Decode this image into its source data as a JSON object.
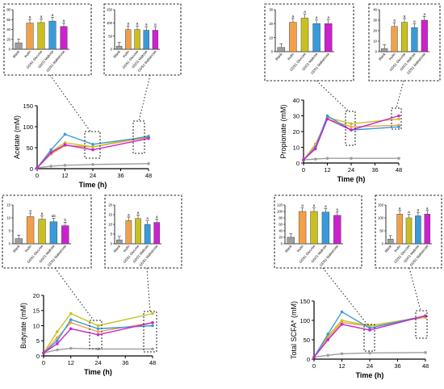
{
  "colors": {
    "Blank": "#9e9e9e",
    "Inulin": "#f0a04b",
    "GDS1 Glucose": "#c8c020",
    "GDS1 Maltose": "#3a9ad9",
    "GDS1 Maltotriose": "#cc22cc"
  },
  "chart_data": [
    {
      "type": "line",
      "ylabel": "Acetate (mM)",
      "xlabel": "Time (h)",
      "x": [
        0,
        6,
        12,
        24,
        48
      ],
      "xticks": [
        "0",
        "12",
        "24",
        "36",
        "48"
      ],
      "yticks": [
        "0",
        "50",
        "100",
        "150"
      ],
      "ylim": [
        0,
        150
      ],
      "series": [
        {
          "name": "Blank",
          "values": [
            2,
            6,
            8,
            10,
            12
          ]
        },
        {
          "name": "Inulin",
          "values": [
            2,
            35,
            55,
            52,
            75
          ]
        },
        {
          "name": "GDS1 Glucose",
          "values": [
            2,
            40,
            62,
            52,
            78
          ]
        },
        {
          "name": "GDS1 Maltose",
          "values": [
            2,
            45,
            82,
            58,
            76
          ]
        },
        {
          "name": "GDS1 Maltotriose",
          "values": [
            2,
            38,
            57,
            45,
            72
          ]
        }
      ],
      "insets": [
        {
          "categories": [
            "Blank",
            "Inulin",
            "GDS1 Glucose",
            "GDS1 Maltose",
            "GDS1 Maltotriose"
          ],
          "values": [
            13,
            53,
            54,
            57,
            46
          ],
          "yticks": [
            "0",
            "20",
            "40",
            "60",
            "80"
          ],
          "ylim": [
            0,
            80
          ],
          "letters": [
            "",
            "a",
            "a",
            "a",
            "a"
          ]
        },
        {
          "categories": [
            "Blank",
            "Inulin",
            "GDS1 Glucose",
            "GDS1 Maltose",
            "GDS1 Maltotriose"
          ],
          "values": [
            12,
            75,
            75,
            72,
            72
          ],
          "yticks": [
            "0",
            "50",
            "100",
            "150"
          ],
          "ylim": [
            0,
            150
          ],
          "letters": [
            "",
            "a",
            "a",
            "a",
            "a"
          ]
        }
      ]
    },
    {
      "type": "line",
      "ylabel": "Propionate (mM)",
      "xlabel": "Time (h)",
      "x": [
        0,
        6,
        12,
        24,
        48
      ],
      "xticks": [
        "0",
        "12",
        "24",
        "36",
        "48"
      ],
      "yticks": [
        "0",
        "10",
        "20",
        "30",
        "40"
      ],
      "ylim": [
        0,
        40
      ],
      "series": [
        {
          "name": "Blank",
          "values": [
            2,
            2.5,
            3,
            3,
            3
          ]
        },
        {
          "name": "Inulin",
          "values": [
            2,
            12,
            28,
            23,
            24
          ]
        },
        {
          "name": "GDS1 Glucose",
          "values": [
            2,
            11,
            29,
            25,
            28
          ]
        },
        {
          "name": "GDS1 Maltose",
          "values": [
            2,
            10,
            30,
            21,
            23
          ]
        },
        {
          "name": "GDS1 Maltotriose",
          "values": [
            2,
            9,
            28,
            21,
            30
          ]
        }
      ],
      "insets": [
        {
          "categories": [
            "Blank",
            "Inulin",
            "GDS1 Glucose",
            "GDS1 Maltose",
            "GDS1 Maltotriose"
          ],
          "values": [
            3,
            21,
            24,
            20,
            20
          ],
          "yticks": [
            "0",
            "10",
            "20",
            "30"
          ],
          "ylim": [
            0,
            30
          ],
          "letters": [
            "",
            "a",
            "a",
            "a",
            "a"
          ]
        },
        {
          "categories": [
            "Blank",
            "Inulin",
            "GDS1 Glucose",
            "GDS1 Maltose",
            "GDS1 Maltotriose"
          ],
          "values": [
            3,
            24,
            28,
            23,
            30
          ],
          "yticks": [
            "0",
            "10",
            "20",
            "30",
            "40"
          ],
          "ylim": [
            0,
            40
          ],
          "letters": [
            "",
            "a",
            "a",
            "a",
            "a"
          ]
        }
      ]
    },
    {
      "type": "line",
      "ylabel": "Butyrate (mM)",
      "xlabel": "Time (h)",
      "x": [
        0,
        6,
        12,
        24,
        48
      ],
      "xticks": [
        "0",
        "12",
        "24",
        "36",
        "48"
      ],
      "yticks": [
        "0",
        "5",
        "10",
        "15",
        "20"
      ],
      "ylim": [
        0,
        20
      ],
      "series": [
        {
          "name": "Blank",
          "values": [
            1,
            2,
            2.5,
            2.3,
            2.3
          ]
        },
        {
          "name": "Inulin",
          "values": [
            1,
            6,
            11,
            8,
            11
          ]
        },
        {
          "name": "GDS1 Glucose",
          "values": [
            1,
            8,
            14,
            10,
            14
          ]
        },
        {
          "name": "GDS1 Maltose",
          "values": [
            1,
            5,
            12,
            9,
            10
          ]
        },
        {
          "name": "GDS1 Maltotriose",
          "values": [
            1,
            4,
            9,
            7,
            11
          ]
        }
      ],
      "insets": [
        {
          "categories": [
            "Blank",
            "Inulin",
            "GDS1 Glucose",
            "GDS1 Maltose",
            "GDS1 Maltotriose"
          ],
          "values": [
            2,
            10.5,
            9.5,
            8.5,
            7
          ],
          "yticks": [
            "0",
            "5",
            "10",
            "15"
          ],
          "ylim": [
            0,
            15
          ],
          "letters": [
            "",
            "a",
            "a",
            "ab",
            "b"
          ]
        },
        {
          "categories": [
            "Blank",
            "Inulin",
            "GDS1 Glucose",
            "GDS1 Maltose",
            "GDS1 Maltotriose"
          ],
          "values": [
            2,
            12,
            13,
            10,
            11
          ],
          "yticks": [
            "0",
            "5",
            "10",
            "15",
            "20"
          ],
          "ylim": [
            0,
            20
          ],
          "letters": [
            "",
            "a",
            "a",
            "a",
            "a"
          ]
        }
      ]
    },
    {
      "type": "line",
      "ylabel": "Total SCFA* (mM)",
      "xlabel": "Time (h)",
      "x": [
        0,
        6,
        12,
        24,
        48
      ],
      "xticks": [
        "0",
        "12",
        "24",
        "36",
        "48"
      ],
      "yticks": [
        "0",
        "50",
        "100",
        "150"
      ],
      "ylim": [
        0,
        150
      ],
      "series": [
        {
          "name": "Blank",
          "values": [
            5,
            10,
            14,
            16,
            17
          ]
        },
        {
          "name": "Inulin",
          "values": [
            5,
            55,
            95,
            85,
            108
          ]
        },
        {
          "name": "GDS1 Glucose",
          "values": [
            5,
            60,
            100,
            86,
            110
          ]
        },
        {
          "name": "GDS1 Maltose",
          "values": [
            5,
            65,
            122,
            80,
            112
          ]
        },
        {
          "name": "GDS1 Maltotriose",
          "values": [
            5,
            50,
            90,
            75,
            112
          ]
        }
      ],
      "insets": [
        {
          "categories": [
            "Blank",
            "Inulin",
            "GDS1 Glucose",
            "GDS1 Maltose",
            "GDS1 Maltotriose"
          ],
          "values": [
            20,
            100,
            100,
            98,
            88
          ],
          "yticks": [
            "0",
            "20",
            "40",
            "60",
            "80",
            "100",
            "120"
          ],
          "ylim": [
            0,
            120
          ],
          "letters": [
            "",
            "a",
            "a",
            "a",
            "a"
          ]
        },
        {
          "categories": [
            "Blank",
            "Inulin",
            "GDS1 Glucose",
            "GDS1 Maltose",
            "GDS1 Maltotriose"
          ],
          "values": [
            18,
            115,
            100,
            108,
            115
          ],
          "yticks": [
            "0",
            "50",
            "100",
            "150"
          ],
          "ylim": [
            0,
            150
          ],
          "letters": [
            "",
            "a",
            "a",
            "a",
            "a"
          ]
        }
      ]
    }
  ]
}
